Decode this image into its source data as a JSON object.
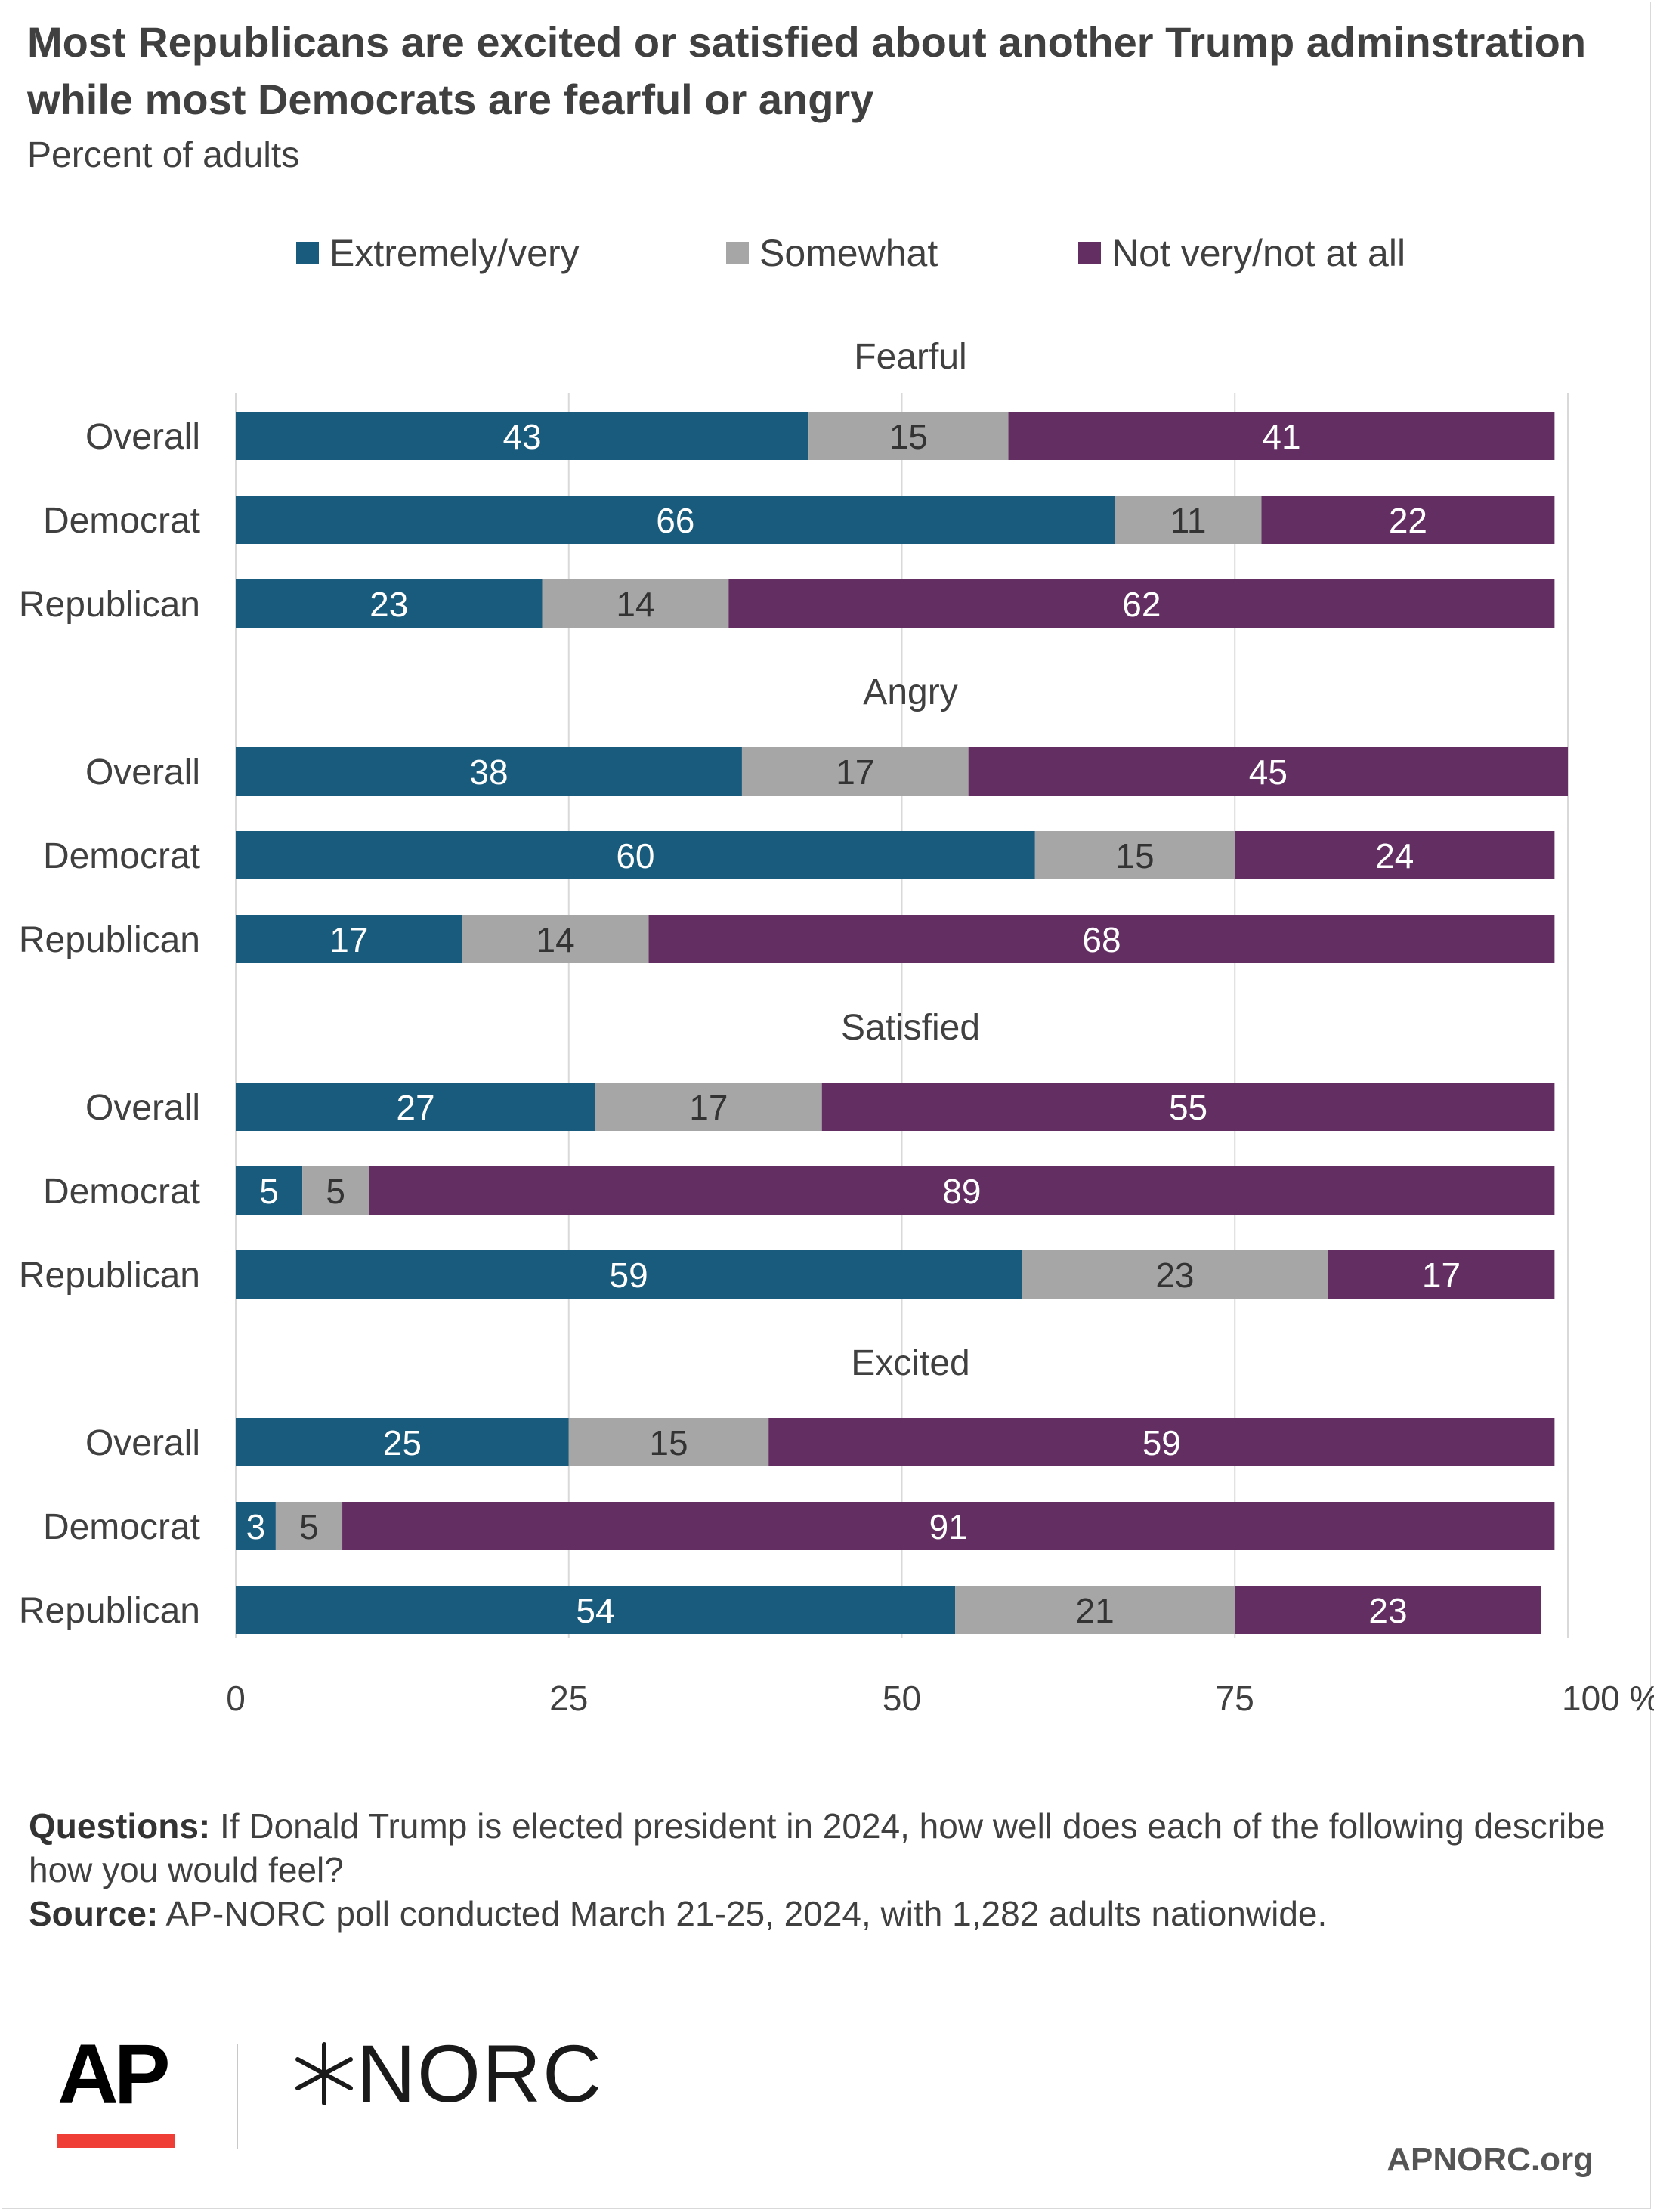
{
  "header": {
    "title": "Most Republicans are excited or satisfied about another Trump adminstration while most Democrats are fearful or angry",
    "subtitle": "Percent of adults"
  },
  "legend": [
    {
      "label": "Extremely/very",
      "color": "#185b7c"
    },
    {
      "label": "Somewhat",
      "color": "#a6a6a6"
    },
    {
      "label": "Not very/not at all",
      "color": "#632e62"
    }
  ],
  "chart_data": {
    "type": "bar",
    "orientation": "horizontal",
    "stacked": true,
    "xlim": [
      0,
      100
    ],
    "x_ticks": [
      "0",
      "25",
      "50",
      "75",
      "100 %"
    ],
    "grid": true,
    "legend_position": "top",
    "series": [
      {
        "name": "Extremely/very",
        "color": "#185b7c"
      },
      {
        "name": "Somewhat",
        "color": "#a6a6a6"
      },
      {
        "name": "Not very/not at all",
        "color": "#632e62"
      }
    ],
    "panels": [
      {
        "title": "Fearful",
        "rows": [
          {
            "label": "Overall",
            "values": [
              43,
              15,
              41
            ]
          },
          {
            "label": "Democrat",
            "values": [
              66,
              11,
              22
            ]
          },
          {
            "label": "Republican",
            "values": [
              23,
              14,
              62
            ]
          }
        ]
      },
      {
        "title": "Angry",
        "rows": [
          {
            "label": "Overall",
            "values": [
              38,
              17,
              45
            ]
          },
          {
            "label": "Democrat",
            "values": [
              60,
              15,
              24
            ]
          },
          {
            "label": "Republican",
            "values": [
              17,
              14,
              68
            ]
          }
        ]
      },
      {
        "title": "Satisfied",
        "rows": [
          {
            "label": "Overall",
            "values": [
              27,
              17,
              55
            ]
          },
          {
            "label": "Democrat",
            "values": [
              5,
              5,
              89
            ]
          },
          {
            "label": "Republican",
            "values": [
              59,
              23,
              17
            ]
          }
        ]
      },
      {
        "title": "Excited",
        "rows": [
          {
            "label": "Overall",
            "values": [
              25,
              15,
              59
            ]
          },
          {
            "label": "Democrat",
            "values": [
              3,
              5,
              91
            ]
          },
          {
            "label": "Republican",
            "values": [
              54,
              21,
              23
            ]
          }
        ]
      }
    ]
  },
  "footer": {
    "questions_label": "Questions:",
    "questions_text": " If Donald Trump is elected president in 2024, how well does each of the following describe how you would feel?",
    "source_label": "Source:",
    "source_text": " AP-NORC poll conducted March 21-25, 2024, with 1,282 adults nationwide."
  },
  "branding": {
    "ap_logo": "AP",
    "norc_logo": "NORC",
    "site": "APNORC.org"
  }
}
